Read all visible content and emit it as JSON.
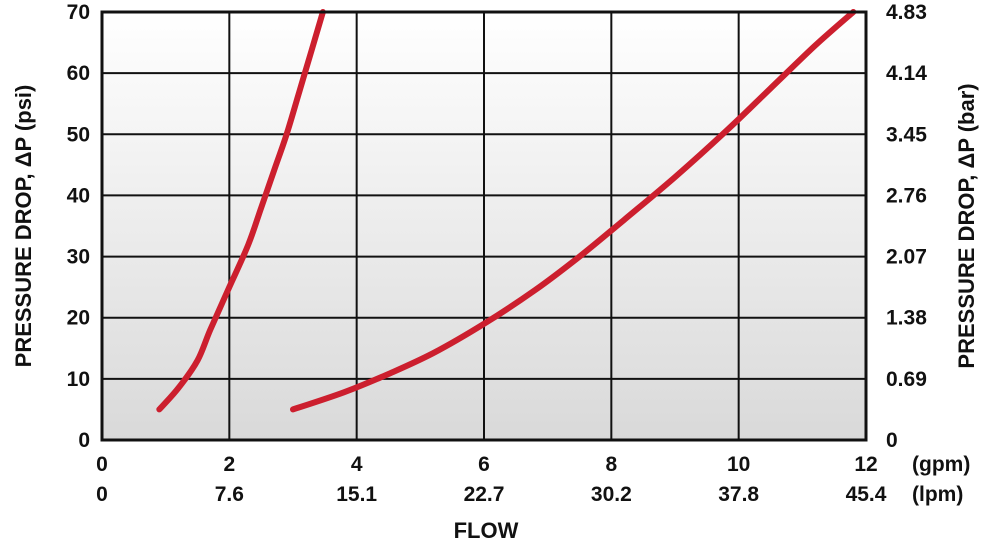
{
  "chart_data": {
    "type": "line",
    "title": "",
    "xlabel": "FLOW",
    "ylabel_left": "PRESSURE DROP, ΔP (psi)",
    "ylabel_right": "PRESSURE DROP, ΔP (bar)",
    "x_unit_primary": "(gpm)",
    "x_unit_secondary": "(lpm)",
    "xlim": [
      0,
      12
    ],
    "ylim": [
      0,
      70
    ],
    "x_ticks": [
      0,
      2,
      4,
      6,
      8,
      10,
      12
    ],
    "x_tick_labels": [
      "0",
      "2",
      "4",
      "6",
      "8",
      "10",
      "12"
    ],
    "x2_tick_labels": [
      "0",
      "7.6",
      "15.1",
      "22.7",
      "30.2",
      "37.8",
      "45.4"
    ],
    "y_ticks": [
      0,
      10,
      20,
      30,
      40,
      50,
      60,
      70
    ],
    "y_tick_labels": [
      "0",
      "10",
      "20",
      "30",
      "40",
      "50",
      "60",
      "70"
    ],
    "y2_tick_labels": [
      "0",
      "0.69",
      "1.38",
      "2.07",
      "2.76",
      "3.45",
      "4.14",
      "4.83"
    ],
    "grid": true,
    "line_color": "#cc1f2e",
    "series": [
      {
        "x": [
          0.9,
          1.2,
          1.5,
          1.7,
          2.0,
          2.3,
          2.5,
          2.7,
          2.9,
          3.1,
          3.3,
          3.47
        ],
        "values": [
          5,
          8.5,
          13,
          18,
          25,
          32,
          38,
          44,
          50,
          57,
          64,
          70
        ]
      },
      {
        "x": [
          3.0,
          3.8,
          4.5,
          5.2,
          6.0,
          6.8,
          7.5,
          8.2,
          9.0,
          9.8,
          10.5,
          11.2,
          11.8
        ],
        "values": [
          5,
          7.8,
          10.8,
          14.2,
          19,
          24.5,
          30,
          36,
          43,
          50.5,
          57.5,
          64.5,
          70
        ]
      }
    ]
  }
}
